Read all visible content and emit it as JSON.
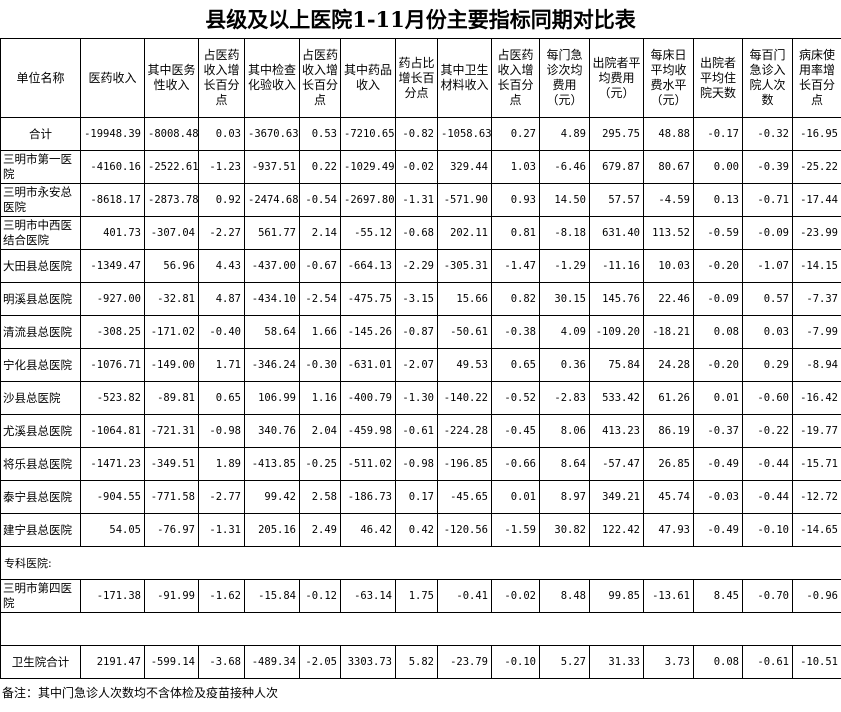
{
  "title": "县级及以上医院1-11月份主要指标同期对比表",
  "headers": [
    "单位名称",
    "医药收入",
    "其中医务性收入",
    "占医药收入增长百分点",
    "其中检查化验收入",
    "占医药收入增长百分点",
    "其中药品收入",
    "药占比增长百分点",
    "其中卫生材料收入",
    "占医药收入增长百分点",
    "每门急诊次均费用（元）",
    "出院者平均费用（元）",
    "每床日平均收费水平（元）",
    "出院者平均住院天数",
    "每百门急诊入院人次数",
    "病床使用率增长百分点"
  ],
  "rows": [
    {
      "name": "合计",
      "values": [
        "-19948.39",
        "-8008.48",
        "0.03",
        "-3670.63",
        "0.53",
        "-7210.65",
        "-0.82",
        "-1058.63",
        "0.27",
        "4.89",
        "295.75",
        "48.88",
        "-0.17",
        "-0.32",
        "-16.95"
      ]
    },
    {
      "name": "三明市第一医院",
      "values": [
        "-4160.16",
        "-2522.61",
        "-1.23",
        "-937.51",
        "0.22",
        "-1029.49",
        "-0.02",
        "329.44",
        "1.03",
        "-6.46",
        "679.87",
        "80.67",
        "0.00",
        "-0.39",
        "-25.22"
      ]
    },
    {
      "name": "三明市永安总医院",
      "values": [
        "-8618.17",
        "-2873.78",
        "0.92",
        "-2474.68",
        "-0.54",
        "-2697.80",
        "-1.31",
        "-571.90",
        "0.93",
        "14.50",
        "57.57",
        "-4.59",
        "0.13",
        "-0.71",
        "-17.44"
      ]
    },
    {
      "name": "三明市中西医结合医院",
      "values": [
        "401.73",
        "-307.04",
        "-2.27",
        "561.77",
        "2.14",
        "-55.12",
        "-0.68",
        "202.11",
        "0.81",
        "-8.18",
        "631.40",
        "113.52",
        "-0.59",
        "-0.09",
        "-23.99"
      ]
    },
    {
      "name": "大田县总医院",
      "values": [
        "-1349.47",
        "56.96",
        "4.43",
        "-437.00",
        "-0.67",
        "-664.13",
        "-2.29",
        "-305.31",
        "-1.47",
        "-1.29",
        "-11.16",
        "10.03",
        "-0.20",
        "-1.07",
        "-14.15"
      ]
    },
    {
      "name": "明溪县总医院",
      "values": [
        "-927.00",
        "-32.81",
        "4.87",
        "-434.10",
        "-2.54",
        "-475.75",
        "-3.15",
        "15.66",
        "0.82",
        "30.15",
        "145.76",
        "22.46",
        "-0.09",
        "0.57",
        "-7.37"
      ]
    },
    {
      "name": "清流县总医院",
      "values": [
        "-308.25",
        "-171.02",
        "-0.40",
        "58.64",
        "1.66",
        "-145.26",
        "-0.87",
        "-50.61",
        "-0.38",
        "4.09",
        "-109.20",
        "-18.21",
        "0.08",
        "0.03",
        "-7.99"
      ]
    },
    {
      "name": "宁化县总医院",
      "values": [
        "-1076.71",
        "-149.00",
        "1.71",
        "-346.24",
        "-0.30",
        "-631.01",
        "-2.07",
        "49.53",
        "0.65",
        "0.36",
        "75.84",
        "24.28",
        "-0.20",
        "0.29",
        "-8.94"
      ]
    },
    {
      "name": "沙县总医院",
      "values": [
        "-523.82",
        "-89.81",
        "0.65",
        "106.99",
        "1.16",
        "-400.79",
        "-1.30",
        "-140.22",
        "-0.52",
        "-2.83",
        "533.42",
        "61.26",
        "0.01",
        "-0.60",
        "-16.42"
      ]
    },
    {
      "name": "尤溪县总医院",
      "values": [
        "-1064.81",
        "-721.31",
        "-0.98",
        "340.76",
        "2.04",
        "-459.98",
        "-0.61",
        "-224.28",
        "-0.45",
        "8.06",
        "413.23",
        "86.19",
        "-0.37",
        "-0.22",
        "-19.77"
      ]
    },
    {
      "name": "将乐县总医院",
      "values": [
        "-1471.23",
        "-349.51",
        "1.89",
        "-413.85",
        "-0.25",
        "-511.02",
        "-0.98",
        "-196.85",
        "-0.66",
        "8.64",
        "-57.47",
        "26.85",
        "-0.49",
        "-0.44",
        "-15.71"
      ]
    },
    {
      "name": "泰宁县总医院",
      "values": [
        "-904.55",
        "-771.58",
        "-2.77",
        "99.42",
        "2.58",
        "-186.73",
        "0.17",
        "-45.65",
        "0.01",
        "8.97",
        "349.21",
        "45.74",
        "-0.03",
        "-0.44",
        "-12.72"
      ]
    },
    {
      "name": "建宁县总医院",
      "values": [
        "54.05",
        "-76.97",
        "-1.31",
        "205.16",
        "2.49",
        "46.42",
        "0.42",
        "-120.56",
        "-1.59",
        "30.82",
        "122.42",
        "47.93",
        "-0.49",
        "-0.10",
        "-14.65"
      ]
    }
  ],
  "specialty_label": "专科医院:",
  "specialty_rows": [
    {
      "name": "三明市第四医院",
      "values": [
        "-171.38",
        "-91.99",
        "-1.62",
        "-15.84",
        "-0.12",
        "-63.14",
        "1.75",
        "-0.41",
        "-0.02",
        "8.48",
        "99.85",
        "-13.61",
        "8.45",
        "-0.70",
        "-0.96"
      ]
    }
  ],
  "clinic_total": {
    "name": "卫生院合计",
    "values": [
      "2191.47",
      "-599.14",
      "-3.68",
      "-489.34",
      "-2.05",
      "3303.73",
      "5.82",
      "-23.79",
      "-0.10",
      "5.27",
      "31.33",
      "3.73",
      "0.08",
      "-0.61",
      "-10.51"
    ]
  },
  "note": "备注：其中门急诊人次数均不含体检及疫苗接种人次"
}
